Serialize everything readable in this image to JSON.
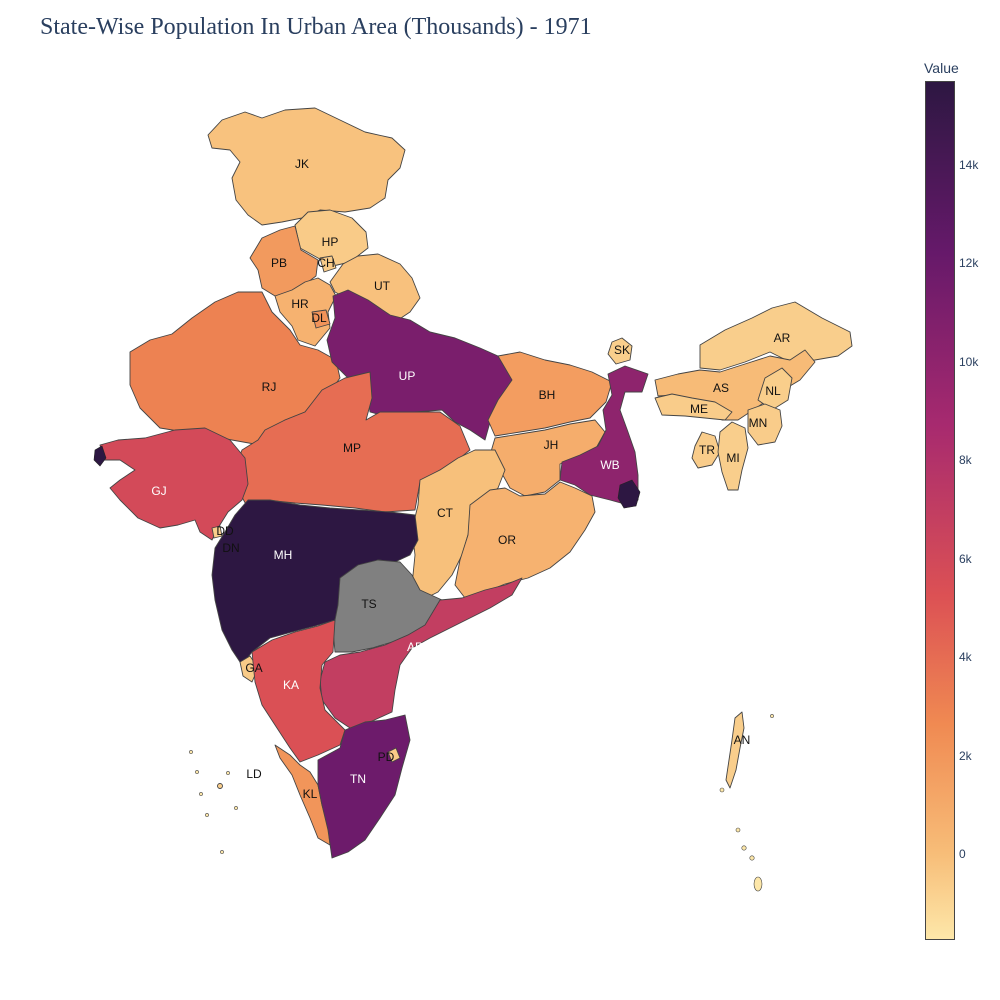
{
  "title": "State-Wise Population In Urban Area (Thousands) - 1971",
  "colorbar": {
    "title": "Value",
    "ticks": [
      "14k",
      "12k",
      "10k",
      "8k",
      "6k",
      "4k",
      "2k",
      "0"
    ],
    "tick_values": [
      14000,
      12000,
      10000,
      8000,
      6000,
      4000,
      2000,
      0
    ],
    "range": [
      -1700,
      15700
    ],
    "colorscale": [
      "#fde7a9",
      "#f7bd78",
      "#f08a52",
      "#dc5154",
      "#a72a6f",
      "#66196a",
      "#2d1742"
    ],
    "missing_color": "#808080"
  },
  "states": [
    {
      "code": "JK",
      "value": 850
    },
    {
      "code": "HP",
      "value": 240
    },
    {
      "code": "PB",
      "value": 3200
    },
    {
      "code": "CH",
      "value": 230
    },
    {
      "code": "UT",
      "value": 900
    },
    {
      "code": "HR",
      "value": 1800
    },
    {
      "code": "DL",
      "value": 3600
    },
    {
      "code": "RJ",
      "value": 4500
    },
    {
      "code": "UP",
      "value": 11900
    },
    {
      "code": "BH",
      "value": 3000
    },
    {
      "code": "SK",
      "value": 20
    },
    {
      "code": "AR",
      "value": 20
    },
    {
      "code": "AS",
      "value": 1300
    },
    {
      "code": "NL",
      "value": 50
    },
    {
      "code": "ME",
      "value": 150
    },
    {
      "code": "MN",
      "value": 140
    },
    {
      "code": "TR",
      "value": 160
    },
    {
      "code": "MI",
      "value": 40
    },
    {
      "code": "JH",
      "value": 2100
    },
    {
      "code": "WB",
      "value": 11000
    },
    {
      "code": "MP",
      "value": 5600
    },
    {
      "code": "GJ",
      "value": 7500
    },
    {
      "code": "DD",
      "value": 30
    },
    {
      "code": "DN",
      "value": 10
    },
    {
      "code": "CT",
      "value": 1000
    },
    {
      "code": "OR",
      "value": 1800
    },
    {
      "code": "MH",
      "value": 15700
    },
    {
      "code": "TS",
      "value": null
    },
    {
      "code": "AP",
      "value": 8400
    },
    {
      "code": "GA",
      "value": 250
    },
    {
      "code": "KA",
      "value": 7100
    },
    {
      "code": "KL",
      "value": 3500
    },
    {
      "code": "TN",
      "value": 12500
    },
    {
      "code": "PD",
      "value": 250
    },
    {
      "code": "LD",
      "value": 0
    },
    {
      "code": "AN",
      "value": 30
    }
  ]
}
